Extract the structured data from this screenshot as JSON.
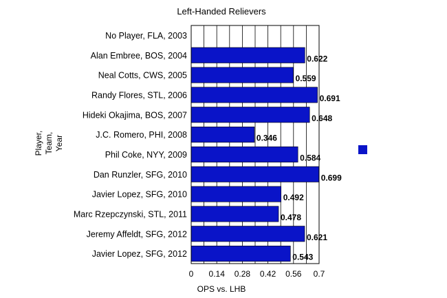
{
  "chart_data": {
    "type": "bar",
    "orientation": "horizontal",
    "title": "Left-Handed Relievers",
    "xlabel": "OPS vs. LHB",
    "ylabel_lines": [
      "Player,",
      "Team,",
      "Year"
    ],
    "categories": [
      "No Player, FLA,  2003",
      "Alan Embree, BOS, 2004",
      "Neal Cotts, CWS, 2005",
      "Randy Flores, STL, 2006",
      "Hideki Okajima, BOS, 2007",
      "J.C. Romero, PHI, 2008",
      "Phil Coke, NYY, 2009",
      "Dan Runzler, SFG, 2010",
      "Javier Lopez, SFG, 2010",
      "Marc Rzepczynski, STL, 2011",
      "Jeremy Affeldt, SFG, 2012",
      "Javier Lopez, SFG, 2012"
    ],
    "values": [
      null,
      0.622,
      0.559,
      0.691,
      0.648,
      0.346,
      0.584,
      0.699,
      0.492,
      0.478,
      0.621,
      0.543
    ],
    "data_labels": [
      "",
      "0.622",
      "0.559",
      "0.691",
      "0.648",
      "0.346",
      "0.584",
      "0.699",
      "0.492",
      "0.478",
      "0.621",
      "0.543"
    ],
    "xticks": [
      "0",
      "0.14",
      "0.28",
      "0.42",
      "0.56",
      "0.7"
    ],
    "xlim": [
      0,
      0.7
    ],
    "grid": "vertical",
    "legend": "right",
    "bar_color": "#0a14c8"
  }
}
